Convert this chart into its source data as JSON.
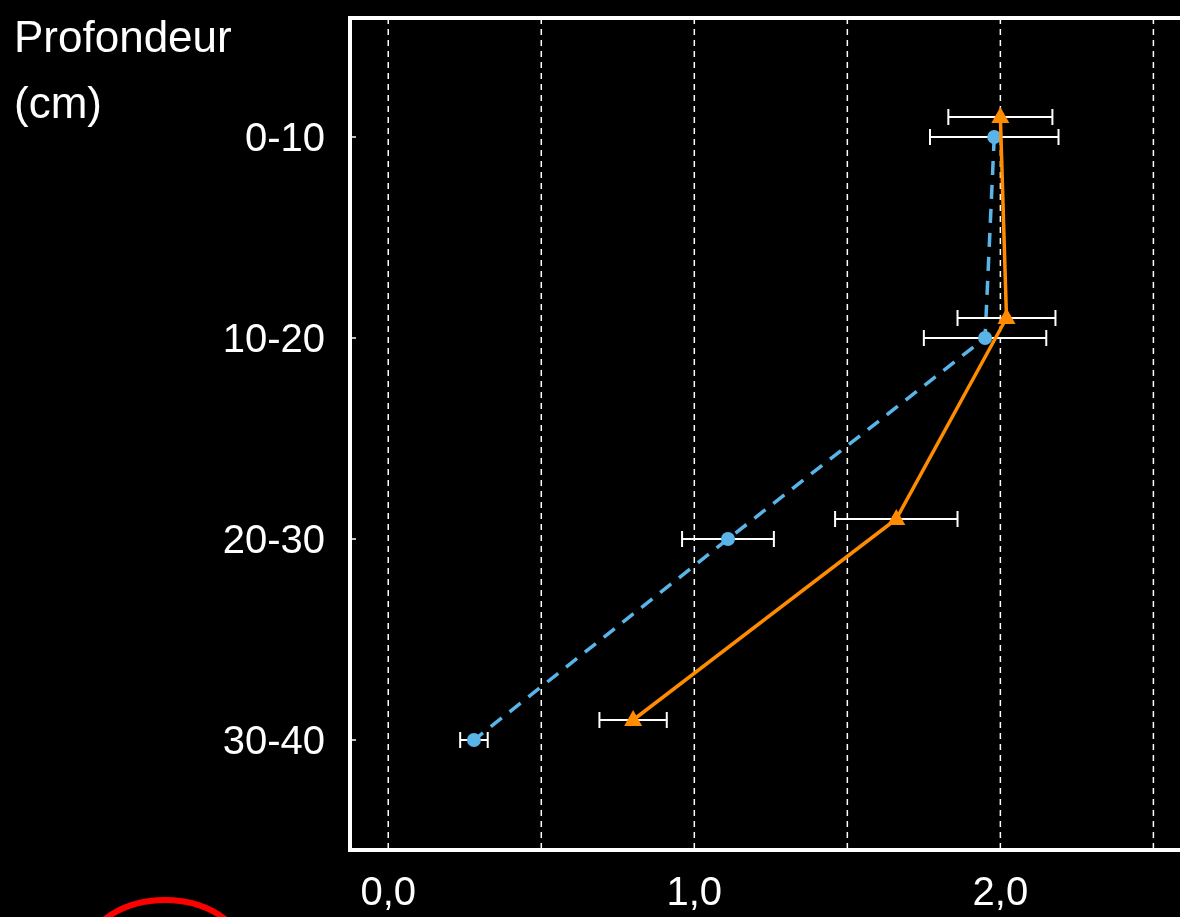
{
  "chart_data": {
    "type": "line",
    "orientation": "horizontal",
    "ylabel": "Profondeur (cm)",
    "categories": [
      "0-10",
      "10-20",
      "20-30",
      "30-40"
    ],
    "series": [
      {
        "color": "#5ab4e8",
        "values": [
          1.98,
          1.95,
          1.11,
          0.28
        ],
        "errors": [
          0.21,
          0.2,
          0.15,
          0.045
        ],
        "marker": "circle",
        "line_style": "dashed"
      },
      {
        "color": "#ff8c00",
        "values": [
          2.0,
          2.02,
          1.66,
          0.8
        ],
        "errors": [
          0.17,
          0.16,
          0.2,
          0.11
        ],
        "marker": "triangle",
        "line_style": "solid"
      }
    ],
    "xlim": [
      -0.125,
      2.6
    ],
    "xticks": [
      {
        "value": 0,
        "label": "0,0"
      },
      {
        "value": 0.5,
        "label": null
      },
      {
        "value": 1,
        "label": "1,0"
      },
      {
        "value": 1.5,
        "label": null
      },
      {
        "value": 2,
        "label": "2,0"
      },
      {
        "value": 2.5,
        "label": null
      }
    ],
    "grid": "x"
  }
}
